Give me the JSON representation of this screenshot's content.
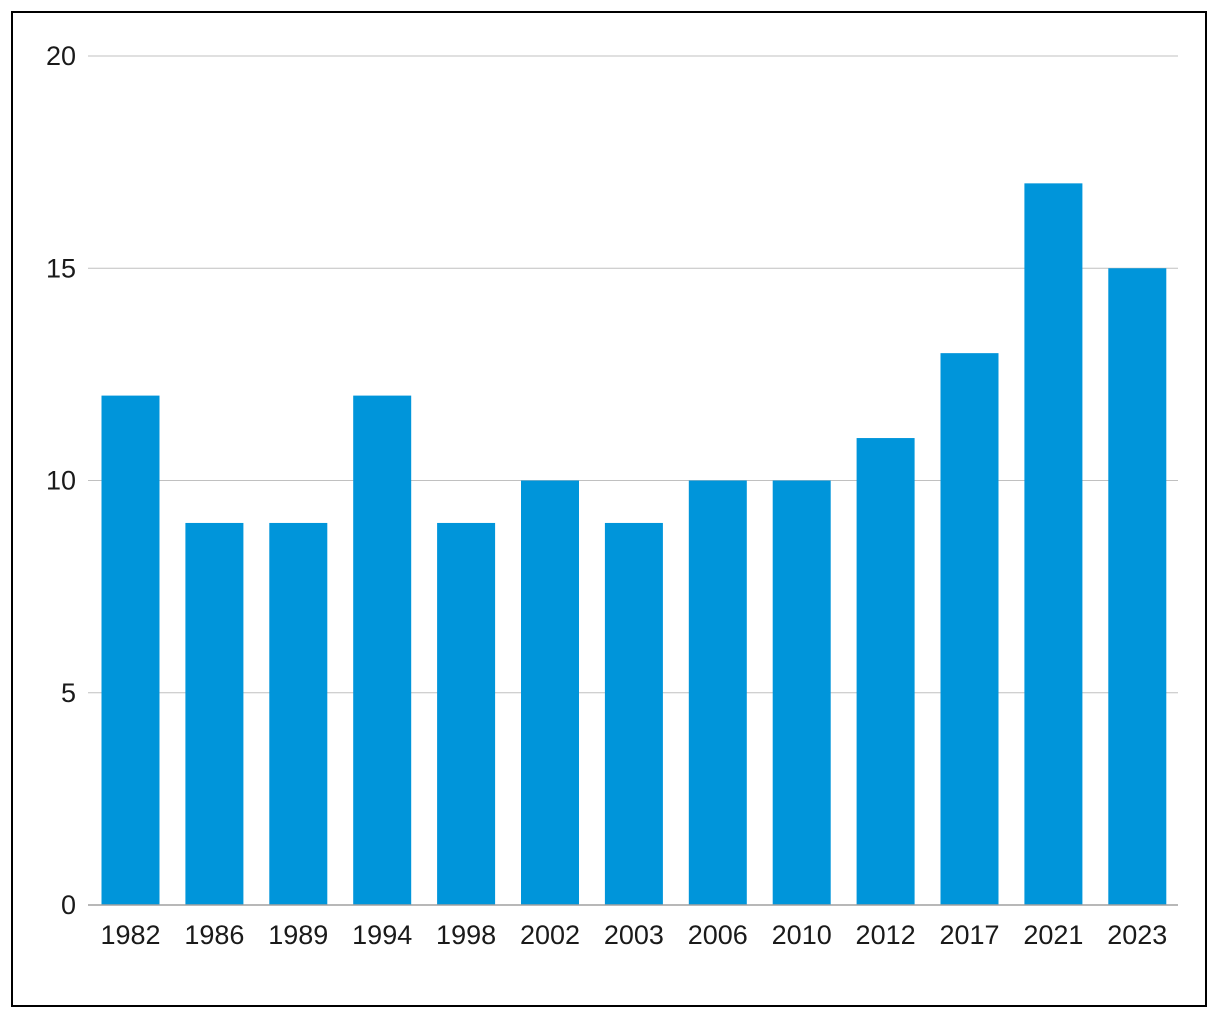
{
  "chart_data": {
    "type": "bar",
    "title": "",
    "xlabel": "",
    "ylabel": "",
    "categories": [
      "1982",
      "1986",
      "1989",
      "1994",
      "1998",
      "2002",
      "2003",
      "2006",
      "2010",
      "2012",
      "2017",
      "2021",
      "2023"
    ],
    "values": [
      12,
      9,
      9,
      12,
      9,
      10,
      9,
      10,
      10,
      11,
      13,
      17,
      15
    ],
    "ylim": [
      0,
      20
    ],
    "yticks": [
      0,
      5,
      10,
      15,
      20
    ],
    "grid": true,
    "legend": "none",
    "colors": {
      "bar": "#0095da",
      "grid": "#c0c0c0",
      "axis": "#a0a0a0",
      "text": "#1a1a1a",
      "border": "#000000"
    }
  }
}
